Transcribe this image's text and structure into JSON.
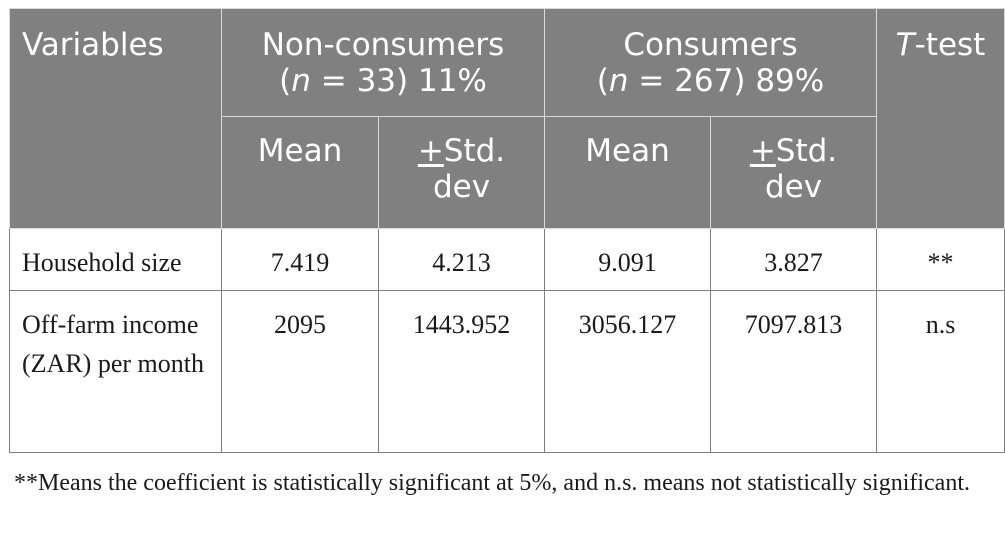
{
  "table": {
    "header": {
      "variables": "Variables",
      "non_consumers_line1": "Non-consumers",
      "non_consumers_n_italic": "n",
      "non_consumers_line2_rest": " = 33) 11%",
      "consumers_line1": "Consumers",
      "consumers_n_italic": "n",
      "consumers_line2_rest": " = 267) 89%",
      "ttest_italic": "T",
      "ttest_rest": "-test",
      "mean": "Mean",
      "std_sign": "+",
      "std_rest": "Std. dev"
    },
    "rows": [
      {
        "variable": "Household size",
        "nc_mean": "7.419",
        "nc_std": "4.213",
        "c_mean": "9.091",
        "c_std": "3.827",
        "ttest": "**"
      },
      {
        "variable": "Off-farm income (ZAR) per month",
        "nc_mean": "2095",
        "nc_std": "1443.952",
        "c_mean": "3056.127",
        "c_std": "7097.813",
        "ttest": "n.s"
      }
    ]
  },
  "footnote": "**Means the coefficient is statistically significant at 5%, and n.s. means not statistically significant."
}
